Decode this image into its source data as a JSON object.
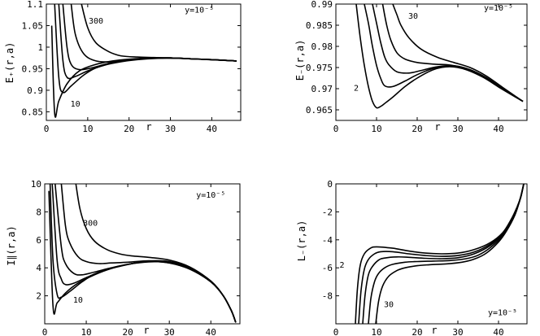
{
  "chart_data": [
    {
      "type": "line",
      "xlabel": "r",
      "ylabel": "E₊(r,a)",
      "xlim": [
        0,
        47
      ],
      "ylim": [
        0.83,
        1.1
      ],
      "xticks": [
        "0",
        "10",
        "20",
        "30",
        "40"
      ],
      "yticks": [
        "0.85",
        "0.9",
        "0.95",
        "1",
        "1.05",
        "1.1"
      ],
      "annotations": [
        {
          "text": "y=10⁻⁵",
          "x": 37,
          "y": 1.08
        },
        {
          "text": "300",
          "x": 12,
          "y": 1.055
        },
        {
          "text": "10",
          "x": 7,
          "y": 0.862
        }
      ],
      "series": [
        {
          "x": [
            1.3,
            2,
            3,
            5,
            8,
            12,
            16,
            20,
            25,
            30,
            35,
            40,
            46
          ],
          "y": [
            1.05,
            0.847,
            0.875,
            0.915,
            0.945,
            0.96,
            0.968,
            0.972,
            0.975,
            0.975,
            0.973,
            0.971,
            0.968
          ]
        },
        {
          "x": [
            2,
            3,
            4,
            6,
            9,
            12,
            16,
            20,
            25,
            30,
            35,
            40,
            46
          ],
          "y": [
            1.1,
            0.93,
            0.895,
            0.91,
            0.935,
            0.952,
            0.965,
            0.971,
            0.974,
            0.975,
            0.973,
            0.971,
            0.968
          ]
        },
        {
          "x": [
            3,
            4,
            5,
            7,
            10,
            14,
            18,
            22,
            27,
            32,
            37,
            42,
            46
          ],
          "y": [
            1.1,
            0.97,
            0.93,
            0.932,
            0.945,
            0.958,
            0.966,
            0.971,
            0.974,
            0.974,
            0.972,
            0.97,
            0.968
          ]
        },
        {
          "x": [
            4,
            5,
            6,
            8,
            11,
            15,
            20,
            25,
            30,
            35,
            40,
            46
          ],
          "y": [
            1.1,
            1.0,
            0.96,
            0.948,
            0.952,
            0.962,
            0.97,
            0.974,
            0.975,
            0.973,
            0.971,
            0.968
          ]
        },
        {
          "x": [
            6,
            7,
            9,
            12,
            16,
            20,
            25,
            30,
            35,
            40,
            46
          ],
          "y": [
            1.1,
            1.03,
            0.985,
            0.968,
            0.966,
            0.97,
            0.974,
            0.975,
            0.973,
            0.971,
            0.968
          ]
        },
        {
          "x": [
            8.5,
            10,
            12,
            15,
            18,
            22,
            26,
            30,
            35,
            40,
            46
          ],
          "y": [
            1.1,
            1.045,
            1.01,
            0.99,
            0.98,
            0.977,
            0.976,
            0.975,
            0.973,
            0.971,
            0.968
          ]
        }
      ]
    },
    {
      "type": "line",
      "xlabel": "r",
      "ylabel": "E₋(r,a)",
      "xlim": [
        0,
        47
      ],
      "ylim": [
        0.9625,
        0.99
      ],
      "xticks": [
        "0",
        "10",
        "20",
        "30",
        "40"
      ],
      "yticks": [
        "0.965",
        "0.97",
        "0.975",
        "0.98",
        "0.985",
        "0.99"
      ],
      "annotations": [
        {
          "text": "y=10⁻⁵",
          "x": 40,
          "y": 0.9885
        },
        {
          "text": "30",
          "x": 19,
          "y": 0.9865
        },
        {
          "text": "2",
          "x": 5,
          "y": 0.9695
        }
      ],
      "series": [
        {
          "x": [
            5,
            6,
            7,
            8,
            9,
            10,
            11,
            12,
            14,
            17,
            20,
            24,
            28,
            32,
            36,
            40,
            46
          ],
          "y": [
            0.99,
            0.982,
            0.9755,
            0.9705,
            0.967,
            0.9655,
            0.9658,
            0.9665,
            0.968,
            0.9705,
            0.9725,
            0.9745,
            0.9752,
            0.9745,
            0.9728,
            0.9705,
            0.967
          ]
        },
        {
          "x": [
            7,
            8,
            9,
            10,
            11,
            12,
            14,
            17,
            20,
            24,
            28,
            32,
            36,
            40,
            46
          ],
          "y": [
            0.99,
            0.9855,
            0.98,
            0.9755,
            0.9725,
            0.9707,
            0.9705,
            0.9718,
            0.9733,
            0.9748,
            0.9753,
            0.9746,
            0.9729,
            0.9706,
            0.967
          ]
        },
        {
          "x": [
            9,
            10,
            11,
            12,
            13,
            15,
            18,
            21,
            25,
            29,
            33,
            37,
            41,
            46
          ],
          "y": [
            0.99,
            0.9855,
            0.981,
            0.9775,
            0.9757,
            0.974,
            0.9737,
            0.9743,
            0.9752,
            0.9754,
            0.9745,
            0.9726,
            0.97,
            0.967
          ]
        },
        {
          "x": [
            11.5,
            12.5,
            13.5,
            15,
            17,
            20,
            24,
            28,
            32,
            36,
            40,
            46
          ],
          "y": [
            0.99,
            0.985,
            0.9815,
            0.9785,
            0.977,
            0.9762,
            0.9758,
            0.9756,
            0.9748,
            0.9729,
            0.9704,
            0.967
          ]
        },
        {
          "x": [
            14,
            15,
            16,
            18,
            21,
            25,
            29,
            33,
            37,
            41,
            46
          ],
          "y": [
            0.99,
            0.9875,
            0.985,
            0.982,
            0.9793,
            0.9774,
            0.9762,
            0.975,
            0.973,
            0.9703,
            0.967
          ]
        }
      ]
    },
    {
      "type": "line",
      "xlabel": "r",
      "ylabel": "I∥(r,a)",
      "xlim": [
        0,
        47
      ],
      "ylim": [
        0,
        10
      ],
      "xticks": [
        "0",
        "10",
        "20",
        "30",
        "40"
      ],
      "yticks": [
        "2",
        "4",
        "6",
        "8",
        "10"
      ],
      "annotations": [
        {
          "text": "y=10⁻⁵",
          "x": 40,
          "y": 9.0
        },
        {
          "text": "300",
          "x": 11,
          "y": 7.0
        },
        {
          "text": "10",
          "x": 8,
          "y": 1.5
        }
      ],
      "series": [
        {
          "x": [
            1,
            2,
            3,
            5,
            8,
            12,
            16,
            20,
            25,
            30,
            35,
            40,
            43,
            45,
            46
          ],
          "y": [
            9.5,
            1.25,
            1.5,
            2.2,
            2.9,
            3.5,
            3.95,
            4.25,
            4.45,
            4.35,
            3.9,
            3.0,
            2.0,
            0.9,
            0.1
          ]
        },
        {
          "x": [
            1.3,
            2,
            3,
            4,
            6,
            9,
            12,
            16,
            20,
            25,
            30,
            35,
            40,
            43,
            45,
            46
          ],
          "y": [
            10,
            4.5,
            2.1,
            1.9,
            2.3,
            3.0,
            3.55,
            3.97,
            4.25,
            4.45,
            4.35,
            3.9,
            3.0,
            2.0,
            0.9,
            0.1
          ]
        },
        {
          "x": [
            1.8,
            3,
            4,
            5,
            7,
            10,
            14,
            18,
            22,
            26,
            30,
            35,
            40,
            43,
            45,
            46
          ],
          "y": [
            10,
            4.5,
            3.2,
            2.8,
            2.9,
            3.3,
            3.8,
            4.1,
            4.35,
            4.45,
            4.38,
            3.9,
            3.0,
            2.0,
            0.9,
            0.1
          ]
        },
        {
          "x": [
            2.5,
            4,
            5,
            7,
            9,
            12,
            16,
            20,
            25,
            30,
            35,
            40,
            43,
            45,
            46
          ],
          "y": [
            10,
            5.5,
            4.3,
            3.6,
            3.5,
            3.7,
            4.0,
            4.25,
            4.42,
            4.4,
            3.95,
            3.0,
            2.0,
            0.9,
            0.1
          ]
        },
        {
          "x": [
            4,
            5,
            6,
            8,
            10,
            13,
            16,
            20,
            25,
            30,
            35,
            40,
            43,
            45,
            46
          ],
          "y": [
            10,
            7.0,
            5.8,
            4.8,
            4.45,
            4.3,
            4.35,
            4.4,
            4.5,
            4.45,
            4.0,
            3.05,
            2.0,
            0.9,
            0.1
          ]
        },
        {
          "x": [
            7.5,
            8.5,
            10,
            12,
            15,
            18,
            21,
            25,
            30,
            35,
            40,
            43,
            45,
            46
          ],
          "y": [
            10,
            8.2,
            6.8,
            5.9,
            5.3,
            5.0,
            4.85,
            4.75,
            4.55,
            4.05,
            3.05,
            2.0,
            0.9,
            0.1
          ]
        }
      ]
    },
    {
      "type": "line",
      "xlabel": "r",
      "ylabel": "L₋(r,a)",
      "xlim": [
        0,
        47
      ],
      "ylim": [
        -10,
        0
      ],
      "xticks": [
        "0",
        "10",
        "20",
        "30",
        "40"
      ],
      "yticks": [
        "-8",
        "-6",
        "-4",
        "-2",
        "0"
      ],
      "annotations": [
        {
          "text": "y=10⁻⁵",
          "x": 41,
          "y": -9.4
        },
        {
          "text": "30",
          "x": 13,
          "y": -8.8
        },
        {
          "text": "2",
          "x": 1.5,
          "y": -6.0
        }
      ],
      "series": [
        {
          "x": [
            4.8,
            5.3,
            6,
            7,
            8.5,
            10,
            14,
            18,
            22,
            26,
            30,
            34,
            38,
            41,
            43,
            44.5,
            45.5,
            46.2
          ],
          "y": [
            -10,
            -7.5,
            -5.8,
            -5.0,
            -4.6,
            -4.5,
            -4.6,
            -4.8,
            -4.95,
            -5.0,
            -4.95,
            -4.7,
            -4.2,
            -3.5,
            -2.6,
            -1.7,
            -0.9,
            0
          ]
        },
        {
          "x": [
            5.6,
            6.2,
            7,
            8,
            9.5,
            11,
            14,
            18,
            22,
            26,
            30,
            34,
            38,
            41,
            43,
            44.5,
            45.5,
            46.2
          ],
          "y": [
            -10,
            -7.6,
            -6.1,
            -5.4,
            -5.0,
            -4.85,
            -4.85,
            -5.0,
            -5.12,
            -5.18,
            -5.12,
            -4.87,
            -4.3,
            -3.55,
            -2.65,
            -1.72,
            -0.9,
            0
          ]
        },
        {
          "x": [
            6.6,
            7.2,
            8,
            9,
            10.5,
            12,
            15,
            18,
            22,
            26,
            30,
            34,
            38,
            41,
            43,
            44.5,
            45.5,
            46.2
          ],
          "y": [
            -10,
            -7.9,
            -6.5,
            -5.9,
            -5.45,
            -5.3,
            -5.22,
            -5.25,
            -5.32,
            -5.35,
            -5.28,
            -5.0,
            -4.4,
            -3.6,
            -2.7,
            -1.75,
            -0.92,
            0
          ]
        },
        {
          "x": [
            8,
            8.6,
            9.5,
            10.5,
            12,
            14,
            17,
            20,
            24,
            28,
            32,
            35,
            38,
            41,
            43,
            44.5,
            45.5,
            46.2
          ],
          "y": [
            -10,
            -8.2,
            -7.0,
            -6.4,
            -6.0,
            -5.75,
            -5.6,
            -5.55,
            -5.52,
            -5.48,
            -5.35,
            -5.1,
            -4.55,
            -3.7,
            -2.75,
            -1.78,
            -0.93,
            0
          ]
        },
        {
          "x": [
            9.8,
            10.5,
            11.5,
            13,
            15,
            17,
            20,
            23,
            27,
            31,
            34,
            37,
            40,
            42,
            44,
            45.2,
            46.2
          ],
          "y": [
            -10,
            -8.4,
            -7.3,
            -6.6,
            -6.2,
            -6.0,
            -5.85,
            -5.78,
            -5.72,
            -5.6,
            -5.38,
            -4.95,
            -4.15,
            -3.35,
            -2.25,
            -1.2,
            0
          ]
        }
      ]
    }
  ]
}
